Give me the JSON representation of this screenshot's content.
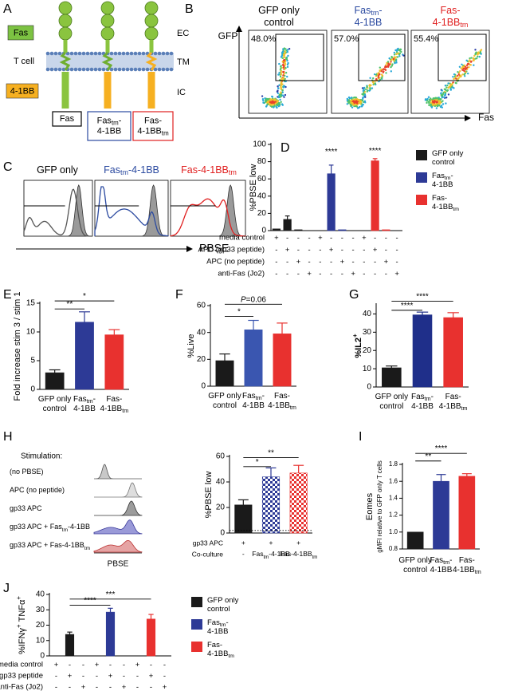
{
  "panel_labels": [
    "A",
    "B",
    "C",
    "D",
    "E",
    "F",
    "G",
    "H",
    "I",
    "J"
  ],
  "diagram_a": {
    "legend": [
      "Fas",
      "T cell",
      "4-1BB"
    ],
    "regions": [
      "EC",
      "TM",
      "IC"
    ],
    "constructs": [
      "Fas",
      [
        [
          "Fas",
          {
            "sub": "tm"
          },
          "-"
        ],
        "4-1BB"
      ],
      [
        "Fas-",
        [
          "4-1BB",
          {
            "sub": "tm"
          }
        ]
      ]
    ],
    "construct_colors": [
      "#000000",
      "#2b4aa0",
      "#e02020"
    ]
  },
  "flow_b": {
    "titles": [
      [
        "GFP only",
        "control"
      ],
      [
        [
          "Fas",
          {
            "sub": "tm"
          },
          "-"
        ],
        "4-1BB"
      ],
      [
        "Fas-",
        [
          "4-1BB",
          {
            "sub": "tm"
          }
        ]
      ]
    ],
    "title_colors": [
      "#000000",
      "#2b4aa0",
      "#e02020"
    ],
    "gates": [
      "48.0%",
      "57.0%",
      "55.4%"
    ],
    "y_label": "GFP",
    "x_label": "Fas"
  },
  "histograms_c": {
    "titles": [
      "GFP only",
      [
        [
          "Fas",
          {
            "sub": "tm"
          },
          "-4-1BB"
        ]
      ],
      [
        [
          "Fas-4-1BB",
          {
            "sub": "tm"
          }
        ]
      ]
    ],
    "title_colors": [
      "#000000",
      "#2b4aa0",
      "#e02020"
    ],
    "x_label": "PBSE"
  },
  "histograms_h": {
    "heading": "Stimulation:",
    "rows": [
      "(no PBSE)",
      "APC (no peptide)",
      "gp33 APC",
      [
        [
          "gp33 APC + Fas",
          {
            "sub": "tm"
          },
          "-4-1BB"
        ]
      ],
      [
        [
          "gp33 APC + Fas-4-1BB",
          {
            "sub": "tm"
          }
        ]
      ]
    ],
    "x_label": "PBSE"
  },
  "chart_data": [
    {
      "type": "bar",
      "ylabel": "%PBSE low",
      "ylim": [
        0,
        100
      ],
      "yticks": [
        0,
        20,
        40,
        60,
        80,
        100
      ],
      "legend": "right",
      "series": [
        {
          "name": [
            "GFP only",
            "control"
          ],
          "color": "#1a1a1a",
          "values": [
            2,
            13,
            1,
            0,
            null,
            null,
            null,
            null,
            null,
            null,
            null,
            null
          ],
          "errors": [
            null,
            4,
            null,
            null,
            null,
            null,
            null,
            null,
            null,
            null,
            null,
            null
          ]
        },
        {
          "name": [
            [
              "Fas",
              {
                "sub": "tm"
              },
              "-"
            ],
            "4-1BB"
          ],
          "color": "#2d3a96",
          "values": [
            null,
            null,
            null,
            null,
            0,
            66,
            1,
            0,
            null,
            null,
            null,
            null
          ],
          "errors": [
            null,
            null,
            null,
            null,
            null,
            10,
            null,
            null,
            null,
            null,
            null,
            null
          ]
        },
        {
          "name": [
            "Fas-",
            [
              "4-1BB",
              {
                "sub": "tm"
              }
            ]
          ],
          "color": "#e8312f",
          "values": [
            null,
            null,
            null,
            null,
            null,
            null,
            null,
            null,
            0,
            81,
            1,
            0
          ],
          "errors": [
            null,
            null,
            null,
            null,
            null,
            null,
            null,
            null,
            null,
            2.5,
            null,
            null
          ]
        }
      ],
      "conditions": [
        {
          "label": "media control",
          "signs": [
            "+",
            "-",
            "-",
            "-",
            "+",
            "-",
            "-",
            "-",
            "+",
            "-",
            "-",
            "-"
          ]
        },
        {
          "label": "APC (gp33 peptide)",
          "signs": [
            "-",
            "+",
            "-",
            "-",
            "-",
            "+",
            "-",
            "-",
            "-",
            "+",
            "-",
            "-"
          ]
        },
        {
          "label": "APC (no peptide)",
          "signs": [
            "-",
            "-",
            "+",
            "-",
            "-",
            "-",
            "+",
            "-",
            "-",
            "-",
            "+",
            "-"
          ]
        },
        {
          "label": "anti-Fas (Jo2)",
          "signs": [
            "-",
            "-",
            "-",
            "+",
            "-",
            "-",
            "-",
            "+",
            "-",
            "-",
            "-",
            "+"
          ]
        }
      ],
      "significance": [
        "****",
        "****"
      ]
    },
    {
      "type": "bar",
      "ylabel": "Fold increase stim 3 / stim 1",
      "ylim": [
        0,
        15
      ],
      "yticks": [
        0,
        5,
        10,
        15
      ],
      "categories": [
        [
          "GFP only",
          "control"
        ],
        [
          [
            "Fas",
            {
              "sub": "tm"
            },
            "-"
          ],
          "4-1BB"
        ],
        [
          "Fas-",
          [
            "4-1BB",
            {
              "sub": "tm"
            }
          ]
        ]
      ],
      "values": [
        2.9,
        11.7,
        9.5
      ],
      "errors": [
        0.5,
        1.8,
        0.9
      ],
      "colors": [
        "#1a1a1a",
        "#2d3a96",
        "#e8312f"
      ],
      "significance": [
        "**",
        "*"
      ]
    },
    {
      "type": "bar",
      "ylabel": "%Live",
      "ylim": [
        0,
        60
      ],
      "yticks": [
        0,
        20,
        40,
        60
      ],
      "categories": [
        [
          "GFP only",
          "control"
        ],
        [
          [
            "Fas",
            {
              "sub": "tm"
            },
            "-"
          ],
          "4-1BB"
        ],
        [
          "Fas-",
          [
            "4-1BB",
            {
              "sub": "tm"
            }
          ]
        ]
      ],
      "values": [
        19,
        42,
        39
      ],
      "errors": [
        5,
        7,
        8
      ],
      "colors": [
        "#1a1a1a",
        "#3a56b0",
        "#e8312f"
      ],
      "significance": [
        "*",
        [
          [
            {
              "it": "P"
            },
            "=0.06"
          ]
        ]
      ]
    },
    {
      "type": "bar",
      "ylabel": [
        [
          "%IL2",
          {
            "sup": "+"
          }
        ]
      ],
      "ylabel_bold": true,
      "ylim": [
        0,
        45
      ],
      "yticks": [
        0,
        10,
        20,
        30,
        40
      ],
      "categories": [
        [
          "GFP only",
          "control"
        ],
        [
          [
            "Fas",
            {
              "sub": "tm"
            },
            "-"
          ],
          "4-1BB"
        ],
        [
          "Fas-",
          [
            "4-1BB",
            {
              "sub": "tm"
            }
          ]
        ]
      ],
      "values": [
        10.5,
        39.5,
        38
      ],
      "errors": [
        1,
        1.5,
        2.7
      ],
      "colors": [
        "#1a1a1a",
        "#1f2f8a",
        "#e8312f"
      ],
      "significance": [
        "****",
        "****"
      ]
    },
    {
      "type": "bar",
      "ylabel": "%PBSE low",
      "ylim": [
        0,
        60
      ],
      "yticks": [
        0,
        20,
        40,
        60
      ],
      "values": [
        22,
        44,
        47
      ],
      "errors": [
        4,
        7,
        6
      ],
      "colors": [
        "#1a1a1a",
        "#2d3a96",
        "#e8312f"
      ],
      "fills": [
        "solid",
        "checkered",
        "checkered"
      ],
      "reference_line": 2,
      "conditions": [
        {
          "label": "gp33 APC",
          "signs": [
            "+",
            "+",
            "+"
          ]
        },
        {
          "label": "Co-culture",
          "signs": [
            "-",
            [
              [
                "Fas",
                {
                  "sub": "tm"
                },
                "-4-1BB"
              ]
            ],
            [
              [
                "Fas-4-1BB",
                {
                  "sub": "tm"
                }
              ]
            ]
          ]
        }
      ],
      "significance": [
        "*",
        "**"
      ]
    },
    {
      "type": "bar",
      "ylabel": [
        "Eomes",
        "gMFI relative to GFP only T cells"
      ],
      "ylim": [
        0.8,
        1.8
      ],
      "yticks": [
        0.8,
        {
          "value": 1,
          "label": "1.0"
        },
        1.2,
        1.4,
        1.6,
        1.8
      ],
      "categories": [
        [
          "GFP only",
          "control"
        ],
        [
          [
            "Fas",
            {
              "sub": "tm"
            },
            "-"
          ],
          "4-1BB"
        ],
        [
          "Fas-",
          [
            "4-1BB",
            {
              "sub": "tm"
            }
          ]
        ]
      ],
      "values": [
        1,
        1.6,
        1.66
      ],
      "errors": [
        null,
        0.08,
        0.03
      ],
      "colors": [
        "#1a1a1a",
        "#2d3a96",
        "#e8312f"
      ],
      "significance": [
        "**",
        "****"
      ]
    },
    {
      "type": "bar",
      "ylabel": [
        [
          "%IFNγ",
          {
            "sup": "+"
          },
          " TNFα",
          {
            "sup": "+"
          }
        ]
      ],
      "ylim": [
        0,
        40
      ],
      "yticks": [
        0,
        10,
        20,
        30,
        40
      ],
      "legend": "right",
      "series": [
        {
          "name": [
            "GFP only",
            "control"
          ],
          "color": "#1a1a1a",
          "values": [
            0,
            14,
            0,
            null,
            null,
            null,
            null,
            null,
            null
          ],
          "errors": [
            null,
            1.5,
            null,
            null,
            null,
            null,
            null,
            null,
            null
          ]
        },
        {
          "name": [
            [
              "Fas",
              {
                "sub": "tm"
              },
              "-"
            ],
            "4-1BB"
          ],
          "color": "#2d3a96",
          "values": [
            null,
            null,
            null,
            0,
            28.5,
            0,
            null,
            null,
            null
          ],
          "errors": [
            null,
            null,
            null,
            null,
            2.5,
            null,
            null,
            null,
            null
          ]
        },
        {
          "name": [
            "Fas-",
            [
              "4-1BB",
              {
                "sub": "tm"
              }
            ]
          ],
          "color": "#e8312f",
          "values": [
            null,
            null,
            null,
            null,
            null,
            null,
            0,
            24,
            0
          ],
          "errors": [
            null,
            null,
            null,
            null,
            null,
            null,
            null,
            3,
            null
          ]
        }
      ],
      "conditions": [
        {
          "label": "media control",
          "signs": [
            "+",
            "-",
            "-",
            "+",
            "-",
            "-",
            "+",
            "-",
            "-"
          ]
        },
        {
          "label": "gp33 peptide",
          "signs": [
            "-",
            "+",
            "-",
            "-",
            "+",
            "-",
            "-",
            "+",
            "-"
          ]
        },
        {
          "label": "anti-Fas (Jo2)",
          "signs": [
            "-",
            "-",
            "+",
            "-",
            "-",
            "+",
            "-",
            "-",
            "+"
          ]
        }
      ],
      "significance": [
        "****",
        "***"
      ]
    }
  ]
}
